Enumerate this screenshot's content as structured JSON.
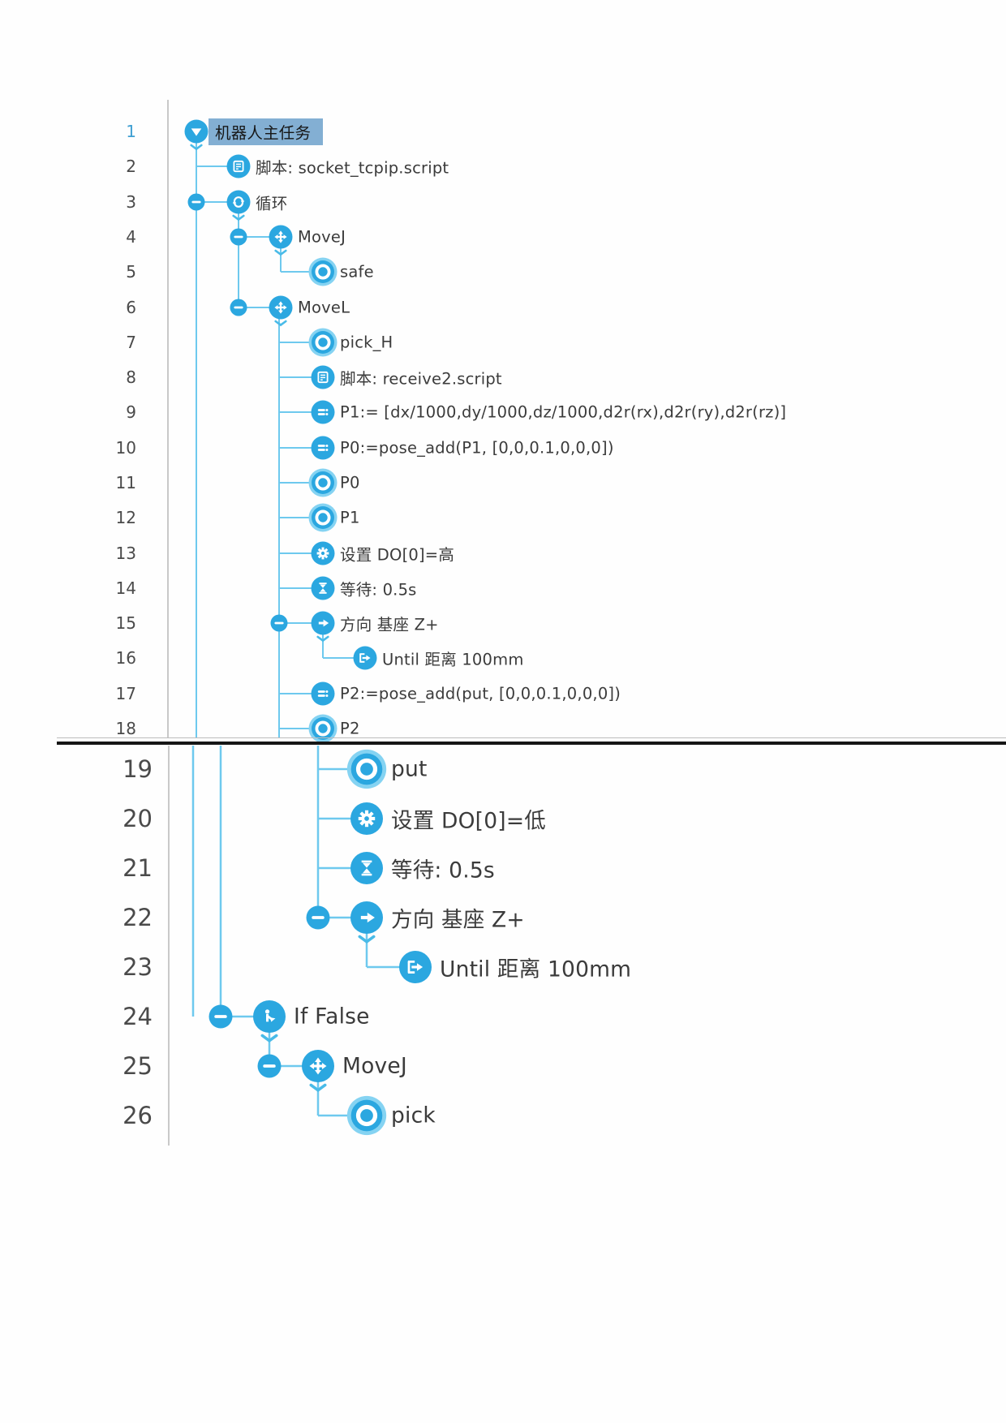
{
  "colors": {
    "accent": "#2ba7e0",
    "waypoint_halo": "#85d3f2",
    "connector": "#6ec9ee",
    "selection": "#83afd3",
    "separator": "#161616",
    "column_divider": "#c9c9c9"
  },
  "program_tree": {
    "selected_row": "1",
    "rows": [
      {
        "n": "1",
        "icon": "play-triangle-icon",
        "label": "机器人主任务",
        "selected": true,
        "expanded": true
      },
      {
        "n": "2",
        "icon": "script-icon",
        "label": "脚本: socket_tcpip.script"
      },
      {
        "n": "3",
        "icon": "loop-icon",
        "label": "循环",
        "collapse": true,
        "expanded": true
      },
      {
        "n": "4",
        "icon": "move-icon",
        "label": "MoveJ",
        "collapse": true,
        "expanded": true
      },
      {
        "n": "5",
        "icon": "waypoint-icon",
        "label": "safe"
      },
      {
        "n": "6",
        "icon": "move-icon",
        "label": "MoveL",
        "collapse": true,
        "expanded": true
      },
      {
        "n": "7",
        "icon": "waypoint-icon",
        "label": "pick_H"
      },
      {
        "n": "8",
        "icon": "script-icon",
        "label": "脚本: receive2.script"
      },
      {
        "n": "9",
        "icon": "assign-icon",
        "label": "P1:= [dx/1000,dy/1000,dz/1000,d2r(rx),d2r(ry),d2r(rz)]"
      },
      {
        "n": "10",
        "icon": "assign-icon",
        "label": "P0:=pose_add(P1, [0,0,0.1,0,0,0])"
      },
      {
        "n": "11",
        "icon": "waypoint-icon",
        "label": "P0"
      },
      {
        "n": "12",
        "icon": "waypoint-icon",
        "label": "P1"
      },
      {
        "n": "13",
        "icon": "gear-icon",
        "label": "设置 DO[0]=高"
      },
      {
        "n": "14",
        "icon": "hourglass-icon",
        "label": "等待: 0.5s"
      },
      {
        "n": "15",
        "icon": "arrow-right-icon",
        "label": "方向 基座 Z+",
        "collapse": true,
        "expanded": true
      },
      {
        "n": "16",
        "icon": "until-icon",
        "label": "Until 距离 100mm"
      },
      {
        "n": "17",
        "icon": "assign-icon",
        "label": "P2:=pose_add(put, [0,0,0.1,0,0,0])"
      },
      {
        "n": "18",
        "icon": "waypoint-icon",
        "label": "P2"
      },
      {
        "n": "19",
        "icon": "waypoint-icon",
        "label": "put"
      },
      {
        "n": "20",
        "icon": "gear-icon",
        "label": "设置 DO[0]=低"
      },
      {
        "n": "21",
        "icon": "hourglass-icon",
        "label": "等待: 0.5s"
      },
      {
        "n": "22",
        "icon": "arrow-right-icon",
        "label": "方向 基座 Z+",
        "collapse": true,
        "expanded": true
      },
      {
        "n": "23",
        "icon": "until-icon",
        "label": "Until 距离 100mm"
      },
      {
        "n": "24",
        "icon": "branch-icon",
        "label": "If False",
        "collapse": true,
        "expanded": true
      },
      {
        "n": "25",
        "icon": "move-icon",
        "label": "MoveJ",
        "collapse": true,
        "expanded": true
      },
      {
        "n": "26",
        "icon": "waypoint-icon",
        "label": "pick"
      }
    ]
  }
}
